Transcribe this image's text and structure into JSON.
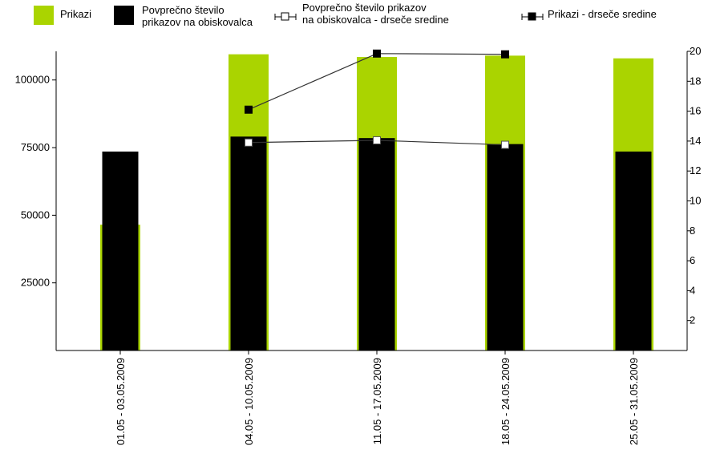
{
  "chart_data": {
    "type": "bar",
    "categories": [
      "01.05 - 03.05.2009",
      "04.05 - 10.05.2009",
      "11.05 - 17.05.2009",
      "18.05 - 24.05.2009",
      "25.05 - 31.05.2009"
    ],
    "series": [
      {
        "name": "Prikazi",
        "type": "bar",
        "axis": "left",
        "color": "#aad400",
        "values": [
          46500,
          109500,
          108500,
          109000,
          108000
        ]
      },
      {
        "name": "Povprečno število prikazov na obiskovalca",
        "type": "bar",
        "axis": "right",
        "color": "#000000",
        "values": [
          13.3,
          14.3,
          14.2,
          13.8,
          13.3
        ]
      },
      {
        "name": "Povprečno število prikazov na obiskovalca - drseče sredine",
        "type": "line",
        "axis": "right",
        "marker": "open-square",
        "values": [
          null,
          13.9,
          14.05,
          13.75,
          null
        ]
      },
      {
        "name": "Prikazi - drseče sredine",
        "type": "line",
        "axis": "right",
        "marker": "filled-square",
        "values": [
          null,
          16.1,
          19.85,
          19.8,
          null
        ]
      }
    ],
    "legend_labels": [
      [
        "Prikazi"
      ],
      [
        "Povprečno število",
        "prikazov na obiskovalca"
      ],
      [
        "Povprečno število prikazov",
        "na obiskovalca - drseče sredine"
      ],
      [
        "Prikazi - drseče sredine"
      ]
    ],
    "y_left": {
      "min": 0,
      "max": 110000,
      "ticks": [
        "25000",
        "50000",
        "75000",
        "100000"
      ]
    },
    "y_right": {
      "min": 0,
      "max": 20,
      "ticks": [
        "2",
        "4",
        "6",
        "8",
        "10",
        "12",
        "14",
        "16",
        "18",
        "20"
      ]
    },
    "title": "",
    "xlabel": "",
    "ylabel": "",
    "grid": false,
    "legend_position": "top"
  }
}
